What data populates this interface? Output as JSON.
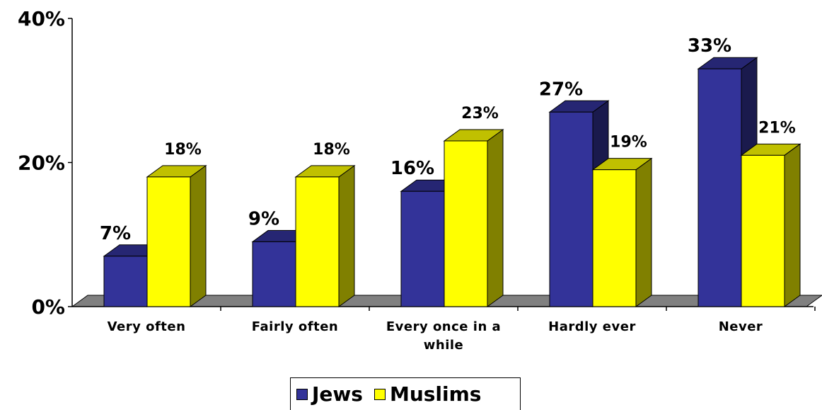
{
  "chart_data": {
    "type": "bar",
    "categories": [
      "Very often",
      "Fairly often",
      "Every once in a while",
      "Hardly ever",
      "Never"
    ],
    "series": [
      {
        "name": "Jews",
        "values": [
          7,
          9,
          16,
          27,
          33
        ],
        "labels": [
          "7%",
          "9%",
          "16%",
          "27%",
          "33%"
        ]
      },
      {
        "name": "Muslims",
        "values": [
          18,
          18,
          23,
          19,
          21
        ],
        "labels": [
          "18%",
          "18%",
          "23%",
          "19%",
          "21%"
        ]
      }
    ],
    "yticks": [
      "0%",
      "20%",
      "40%"
    ],
    "ylim": [
      0,
      40
    ],
    "grid": false,
    "legend_position": "bottom",
    "colors": {
      "Jews": "#333399",
      "Jews_side": "#1a1a4d",
      "Jews_top": "#262673",
      "Muslims": "#ffff00",
      "Muslims_side": "#808000",
      "Muslims_top": "#c0c000",
      "floor": "#808080"
    }
  }
}
